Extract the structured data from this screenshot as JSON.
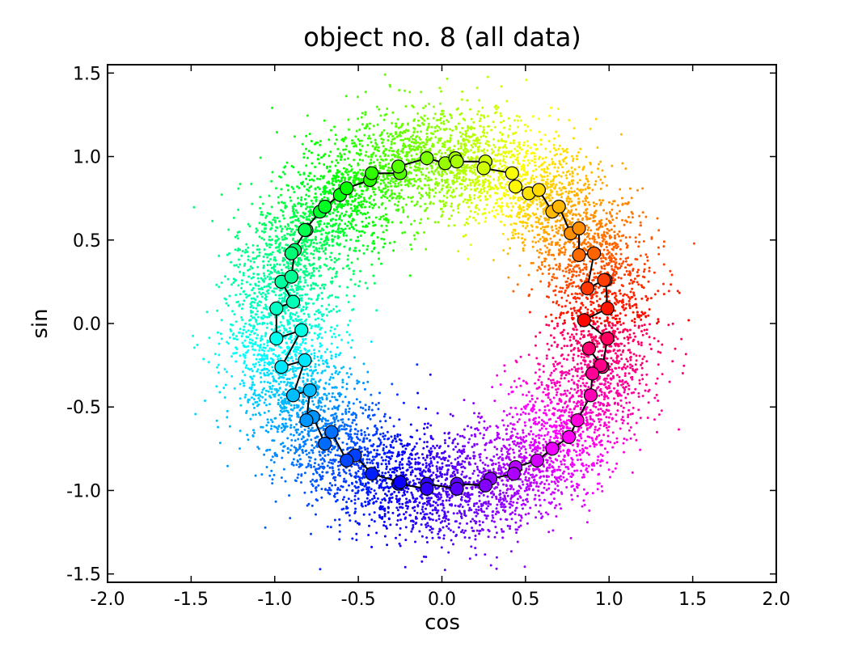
{
  "chart_data": {
    "type": "scatter",
    "title": "object no. 8 (all data)",
    "xlabel": "cos",
    "ylabel": "sin",
    "xlim": [
      -2.0,
      2.0
    ],
    "ylim": [
      -1.55,
      1.55
    ],
    "xticks": [
      -2.0,
      -1.5,
      -1.0,
      -0.5,
      0.0,
      0.5,
      1.0,
      1.5,
      2.0
    ],
    "xtick_labels": [
      "-2.0",
      "-1.5",
      "-1.0",
      "-0.5",
      "0.0",
      "0.5",
      "1.0",
      "1.5",
      "2.0"
    ],
    "yticks": [
      -1.5,
      -1.0,
      -0.5,
      0.0,
      0.5,
      1.0,
      1.5
    ],
    "ytick_labels": [
      "-1.5",
      "-1.0",
      "-0.5",
      "0.0",
      "0.5",
      "1.0",
      "1.5"
    ],
    "grid": false,
    "colormap": "hsv by angle",
    "series": [
      {
        "type": "scatter",
        "description_kind": "dense noisy ring of small points",
        "count": 9000,
        "radius_mean": 1.0,
        "radius_sd": 0.17,
        "color_by": "angle"
      },
      {
        "type": "line-with-markers",
        "points": [
          [
            0.98,
            0.26
          ],
          [
            0.99,
            0.09
          ],
          [
            0.85,
            0.02
          ],
          [
            0.99,
            -0.09
          ],
          [
            0.96,
            -0.26
          ],
          [
            0.88,
            -0.15
          ],
          [
            0.95,
            -0.25
          ],
          [
            0.9,
            -0.3
          ],
          [
            0.89,
            -0.43
          ],
          [
            0.81,
            -0.58
          ],
          [
            0.76,
            -0.68
          ],
          [
            0.66,
            -0.75
          ],
          [
            0.57,
            -0.82
          ],
          [
            0.44,
            -0.86
          ],
          [
            0.43,
            -0.9
          ],
          [
            0.29,
            -0.93
          ],
          [
            0.26,
            -0.97
          ],
          [
            0.09,
            -0.96
          ],
          [
            0.09,
            -0.99
          ],
          [
            -0.09,
            -0.96
          ],
          [
            -0.09,
            -0.99
          ],
          [
            -0.26,
            -0.96
          ],
          [
            -0.25,
            -0.95
          ],
          [
            -0.42,
            -0.9
          ],
          [
            -0.52,
            -0.79
          ],
          [
            -0.57,
            -0.82
          ],
          [
            -0.66,
            -0.65
          ],
          [
            -0.7,
            -0.72
          ],
          [
            -0.77,
            -0.56
          ],
          [
            -0.81,
            -0.58
          ],
          [
            -0.79,
            -0.4
          ],
          [
            -0.89,
            -0.43
          ],
          [
            -0.82,
            -0.22
          ],
          [
            -0.96,
            -0.26
          ],
          [
            -0.84,
            -0.04
          ],
          [
            -0.99,
            -0.09
          ],
          [
            -0.99,
            0.09
          ],
          [
            -0.89,
            0.13
          ],
          [
            -0.96,
            0.25
          ],
          [
            -0.9,
            0.28
          ],
          [
            -0.88,
            0.44
          ],
          [
            -0.9,
            0.42
          ],
          [
            -0.81,
            0.56
          ],
          [
            -0.82,
            0.56
          ],
          [
            -0.73,
            0.67
          ],
          [
            -0.7,
            0.7
          ],
          [
            -0.61,
            0.77
          ],
          [
            -0.57,
            0.81
          ],
          [
            -0.43,
            0.86
          ],
          [
            -0.42,
            0.9
          ],
          [
            -0.25,
            0.9
          ],
          [
            -0.26,
            0.94
          ],
          [
            -0.09,
            0.99
          ],
          [
            0.02,
            0.96
          ],
          [
            0.08,
            0.99
          ],
          [
            0.09,
            0.97
          ],
          [
            0.26,
            0.97
          ],
          [
            0.25,
            0.93
          ],
          [
            0.42,
            0.9
          ],
          [
            0.44,
            0.82
          ],
          [
            0.52,
            0.78
          ],
          [
            0.58,
            0.8
          ],
          [
            0.66,
            0.67
          ],
          [
            0.7,
            0.7
          ],
          [
            0.77,
            0.54
          ],
          [
            0.82,
            0.57
          ],
          [
            0.82,
            0.41
          ],
          [
            0.91,
            0.42
          ],
          [
            0.87,
            0.21
          ],
          [
            0.97,
            0.26
          ]
        ],
        "marker_color": "by angle",
        "line_color": "#000000"
      }
    ]
  }
}
